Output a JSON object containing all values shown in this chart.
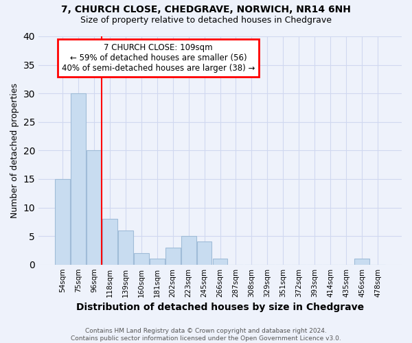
{
  "title1": "7, CHURCH CLOSE, CHEDGRAVE, NORWICH, NR14 6NH",
  "title2": "Size of property relative to detached houses in Chedgrave",
  "xlabel": "Distribution of detached houses by size in Chedgrave",
  "ylabel": "Number of detached properties",
  "bar_labels": [
    "54sqm",
    "75sqm",
    "96sqm",
    "118sqm",
    "139sqm",
    "160sqm",
    "181sqm",
    "202sqm",
    "223sqm",
    "245sqm",
    "266sqm",
    "287sqm",
    "308sqm",
    "329sqm",
    "351sqm",
    "372sqm",
    "393sqm",
    "414sqm",
    "435sqm",
    "456sqm",
    "478sqm"
  ],
  "bar_values": [
    15,
    30,
    20,
    8,
    6,
    2,
    1,
    3,
    5,
    4,
    1,
    0,
    0,
    0,
    0,
    0,
    0,
    0,
    0,
    1,
    0
  ],
  "bar_color": "#c8dcf0",
  "bar_edge_color": "#a0bcd8",
  "vline_x_idx": 2.5,
  "annotation_text": "7 CHURCH CLOSE: 109sqm\n← 59% of detached houses are smaller (56)\n40% of semi-detached houses are larger (38) →",
  "annotation_box_color": "white",
  "annotation_box_edge_color": "red",
  "vline_color": "red",
  "ylim": [
    0,
    40
  ],
  "yticks": [
    0,
    5,
    10,
    15,
    20,
    25,
    30,
    35,
    40
  ],
  "footer": "Contains HM Land Registry data © Crown copyright and database right 2024.\nContains public sector information licensed under the Open Government Licence v3.0.",
  "bg_color": "#eef2fb",
  "grid_color": "#d0d8f0",
  "title1_fontsize": 10,
  "title2_fontsize": 9,
  "ylabel_fontsize": 9,
  "xlabel_fontsize": 10,
  "tick_fontsize": 7.5,
  "footer_fontsize": 6.5,
  "ann_fontsize": 8.5
}
